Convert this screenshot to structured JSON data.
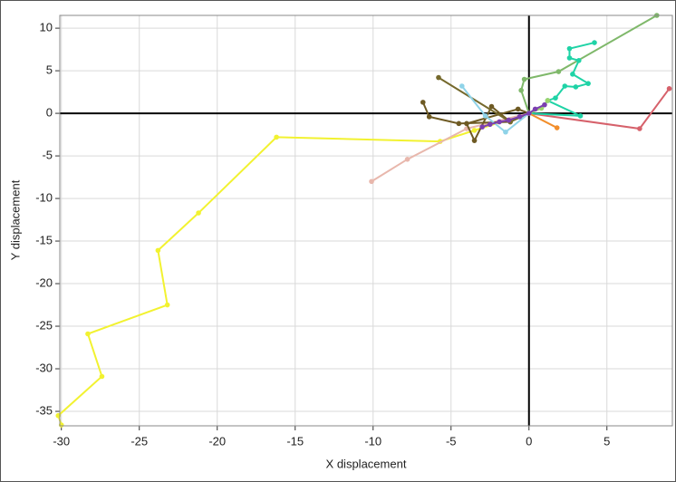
{
  "chart_data": {
    "type": "line",
    "markers": true,
    "grid": true,
    "x_label": "X displacement",
    "y_label": "Y displacement",
    "xlim": [
      -30.1,
      9.2
    ],
    "ylim": [
      -36.7,
      11.5
    ],
    "xticks": [
      -30,
      -25,
      -20,
      -15,
      -10,
      -5,
      0,
      5
    ],
    "yticks": [
      -35,
      -30,
      -25,
      -20,
      -15,
      -10,
      -5,
      0,
      5,
      10
    ],
    "series": [
      {
        "color": "#f2f230",
        "x": [
          0,
          -3.5,
          -5.7,
          -16.2,
          -21.2,
          -23.8,
          -23.2,
          -28.3,
          -27.4,
          -30.2,
          -30.0
        ],
        "values": [
          0,
          -2.0,
          -3.3,
          -2.8,
          -11.7,
          -16.1,
          -22.5,
          -25.9,
          -30.9,
          -35.5,
          -36.6
        ]
      },
      {
        "color": "#e8b7ac",
        "x": [
          0,
          -4.0,
          -7.8,
          -10.1
        ],
        "values": [
          0,
          -1.8,
          -5.4,
          -8.0
        ]
      },
      {
        "color": "#d6616b",
        "x": [
          0,
          7.1,
          9.0
        ],
        "values": [
          0,
          -1.8,
          2.9
        ]
      },
      {
        "color": "#7fb86a",
        "x": [
          0,
          -0.5,
          -0.3,
          1.9,
          8.2
        ],
        "values": [
          0,
          2.7,
          4.0,
          4.9,
          11.5
        ]
      },
      {
        "color": "#1fd3a6",
        "x": [
          0,
          3.3,
          1.2,
          1.7,
          2.3,
          3.0,
          3.8,
          2.8,
          3.2,
          2.6,
          2.6,
          4.2
        ],
        "values": [
          0,
          -0.3,
          1.5,
          1.8,
          3.2,
          3.1,
          3.5,
          4.6,
          6.2,
          6.5,
          7.6,
          8.3
        ]
      },
      {
        "color": "#6e5a23",
        "x": [
          0,
          -0.7,
          -4.0,
          -3.5,
          -2.4,
          -1.2,
          -4.5,
          -6.4,
          -6.8
        ],
        "values": [
          0,
          0.5,
          -1.2,
          -3.2,
          0.8,
          -1.0,
          -1.2,
          -0.4,
          1.3
        ]
      },
      {
        "color": "#75692c",
        "x": [
          0,
          -1.2,
          -5.8
        ],
        "values": [
          0,
          -1.0,
          4.2
        ]
      },
      {
        "color": "#8fd3e8",
        "x": [
          0,
          -1.5,
          -2.8,
          -4.3
        ],
        "values": [
          0,
          -2.2,
          -0.3,
          3.2
        ]
      },
      {
        "color": "#f28e2b",
        "x": [
          0,
          1.8
        ],
        "values": [
          0,
          -1.7
        ]
      },
      {
        "color": "#9dd36b",
        "x": [
          0,
          0.8,
          1.2
        ],
        "values": [
          0,
          0.6,
          1.5
        ]
      },
      {
        "color": "#7b3fb0",
        "x": [
          1.0,
          0.4,
          0,
          -0.6,
          -1.3,
          -1.9,
          -2.5,
          -3.0
        ],
        "values": [
          1.0,
          0.5,
          0,
          -0.4,
          -0.8,
          -1.0,
          -1.3,
          -1.6
        ]
      }
    ]
  }
}
